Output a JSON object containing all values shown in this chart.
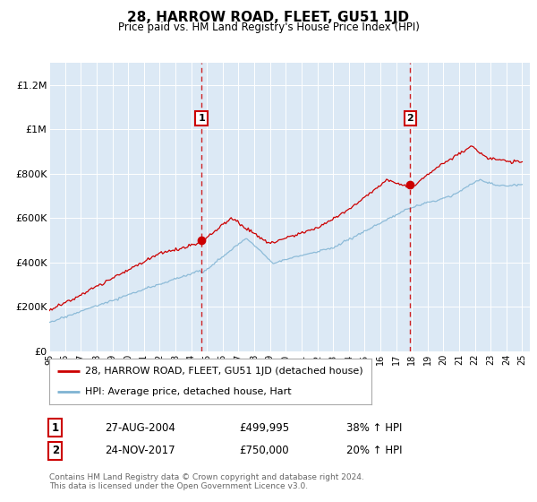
{
  "title": "28, HARROW ROAD, FLEET, GU51 1JD",
  "subtitle": "Price paid vs. HM Land Registry's House Price Index (HPI)",
  "red_label": "28, HARROW ROAD, FLEET, GU51 1JD (detached house)",
  "blue_label": "HPI: Average price, detached house, Hart",
  "sale1_date": "27-AUG-2004",
  "sale1_price": 499995,
  "sale1_hpi_text": "38% ↑ HPI",
  "sale2_date": "24-NOV-2017",
  "sale2_price": 750000,
  "sale2_hpi_text": "20% ↑ HPI",
  "sale1_x": 2004.65,
  "sale2_x": 2017.9,
  "ylim_min": 0,
  "ylim_max": 1300000,
  "xlim_min": 1995,
  "xlim_max": 2025.5,
  "background_color": "#dce9f5",
  "red_color": "#cc0000",
  "blue_color": "#7fb3d3",
  "dashed_color": "#cc0000",
  "footer": "Contains HM Land Registry data © Crown copyright and database right 2024.\nThis data is licensed under the Open Government Licence v3.0.",
  "yticks": [
    0,
    200000,
    400000,
    600000,
    800000,
    1000000,
    1200000
  ],
  "ytick_labels": [
    "£0",
    "£200K",
    "£400K",
    "£600K",
    "£800K",
    "£1M",
    "£1.2M"
  ],
  "xticks": [
    1995,
    1996,
    1997,
    1998,
    1999,
    2000,
    2001,
    2002,
    2003,
    2004,
    2005,
    2006,
    2007,
    2008,
    2009,
    2010,
    2011,
    2012,
    2013,
    2014,
    2015,
    2016,
    2017,
    2018,
    2019,
    2020,
    2021,
    2022,
    2023,
    2024,
    2025
  ]
}
